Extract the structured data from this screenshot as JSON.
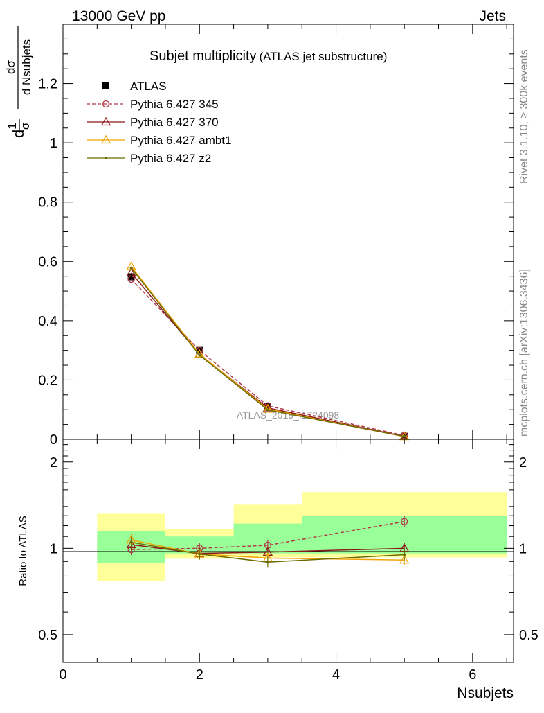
{
  "header": {
    "energy_label": "13000 GeV pp",
    "category_label": "Jets"
  },
  "side_labels": {
    "rivet": "Rivet 3.1.10, ≥ 300k events",
    "mcplots": "mcplots.cern.ch [arXiv:1306.3436]"
  },
  "chart_data": [
    {
      "type": "line",
      "title": "Subjet multiplicity",
      "subtitle": "(ATLAS jet substructure)",
      "ylabel_parts": {
        "lhs": "d",
        "one": "1",
        "sigma": "σ",
        "num": "dσ",
        "den": "d Nsubjets"
      },
      "watermark": "ATLAS_2019_I1724098",
      "xlim": [
        0,
        6.6
      ],
      "ylim": [
        0,
        1.4
      ],
      "yticks": [
        0,
        0.2,
        0.4,
        0.6,
        0.8,
        1,
        1.2
      ],
      "ytick_labels": [
        "0",
        "0.2",
        "0.4",
        "0.6",
        "0.8",
        "1",
        "1.2"
      ],
      "x": [
        1,
        2,
        3,
        5
      ],
      "series": [
        {
          "name": "ATLAS",
          "kind": "data",
          "color": "#000000",
          "values": [
            0.548,
            0.3,
            0.11,
            0.01
          ]
        },
        {
          "name": "Pythia 6.427 345",
          "kind": "mc",
          "color": "#b03a48",
          "marker": "circle",
          "dash": "5,3",
          "values": [
            0.54,
            0.3,
            0.113,
            0.013
          ]
        },
        {
          "name": "Pythia 6.427 370",
          "kind": "mc",
          "color": "#8b1a1a",
          "marker": "triangle",
          "dash": "",
          "values": [
            0.562,
            0.286,
            0.106,
            0.01
          ]
        },
        {
          "name": "Pythia 6.427 ambt1",
          "kind": "mc",
          "color": "#f0a400",
          "marker": "triangle",
          "dash": "",
          "values": [
            0.583,
            0.288,
            0.102,
            0.009
          ]
        },
        {
          "name": "Pythia 6.427 z2",
          "kind": "mc",
          "color": "#6b6b00",
          "marker": "dot",
          "dash": "",
          "values": [
            0.578,
            0.284,
            0.099,
            0.0095
          ]
        }
      ]
    },
    {
      "type": "line",
      "ylabel": "Ratio to ATLAS",
      "xlabel": "Nsubjets",
      "yscale": "log",
      "ylim": [
        0.4,
        2.4
      ],
      "yticks": [
        0.5,
        1,
        2
      ],
      "ytick_labels": [
        "0.5",
        "1",
        "2"
      ],
      "xticks": [
        0,
        2,
        4,
        6
      ],
      "xtick_labels": [
        "0",
        "2",
        "4",
        "6"
      ],
      "xlim": [
        0,
        6.6
      ],
      "bands": [
        {
          "x0": 0.5,
          "x1": 1.5,
          "stat_lo": 0.89,
          "stat_hi": 1.15,
          "tot_lo": 0.77,
          "tot_hi": 1.32
        },
        {
          "x0": 1.5,
          "x1": 2.5,
          "stat_lo": 0.96,
          "stat_hi": 1.1,
          "tot_lo": 0.92,
          "tot_hi": 1.17
        },
        {
          "x0": 2.5,
          "x1": 3.5,
          "stat_lo": 0.96,
          "stat_hi": 1.22,
          "tot_lo": 0.93,
          "tot_hi": 1.42
        },
        {
          "x0": 3.5,
          "x1": 6.5,
          "stat_lo": 0.96,
          "stat_hi": 1.3,
          "tot_lo": 0.93,
          "tot_hi": 1.57
        }
      ],
      "x": [
        1,
        2,
        3,
        5
      ],
      "series": [
        {
          "name": "Pythia 6.427 345",
          "color": "#b03a48",
          "marker": "circle",
          "dash": "5,3",
          "values": [
            0.99,
            1.0,
            1.025,
            1.24
          ]
        },
        {
          "name": "Pythia 6.427 370",
          "color": "#8b1a1a",
          "marker": "triangle",
          "dash": "",
          "values": [
            1.03,
            0.96,
            0.97,
            1.0
          ]
        },
        {
          "name": "Pythia 6.427 ambt1",
          "color": "#f0a400",
          "marker": "triangle",
          "dash": "",
          "values": [
            1.07,
            0.955,
            0.925,
            0.91
          ]
        },
        {
          "name": "Pythia 6.427 z2",
          "color": "#6b6b00",
          "marker": "dot",
          "dash": "",
          "values": [
            1.05,
            0.955,
            0.895,
            0.95
          ]
        }
      ]
    }
  ]
}
